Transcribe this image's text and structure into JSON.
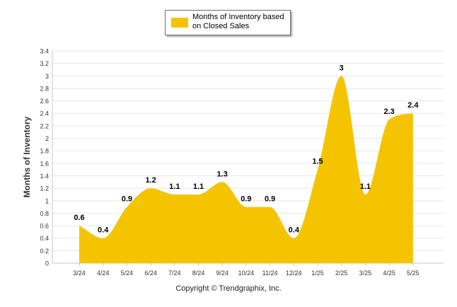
{
  "chart_data": {
    "type": "area",
    "categories": [
      "3/24",
      "4/24",
      "5/24",
      "6/24",
      "7/24",
      "8/24",
      "9/24",
      "10/24",
      "11/24",
      "12/24",
      "1/25",
      "2/25",
      "3/25",
      "4/25",
      "5/25"
    ],
    "series": [
      {
        "name": "Months of Inventory based on Closed Sales",
        "values": [
          0.6,
          0.4,
          0.9,
          1.2,
          1.1,
          1.1,
          1.3,
          0.9,
          0.9,
          0.4,
          1.5,
          3,
          1.1,
          2.3,
          2.4
        ]
      }
    ],
    "data_labels": [
      "0.6",
      "0.4",
      "0.9",
      "1.2",
      "1.1",
      "1.1",
      "1.3",
      "0.9",
      "0.9",
      "0.4",
      "1.5",
      "3",
      "1.1",
      "2.3",
      "2.4"
    ],
    "y_ticks": [
      "0",
      "0.2",
      "0.4",
      "0.6",
      "0.8",
      "1",
      "1.2",
      "1.4",
      "1.6",
      "1.8",
      "2",
      "2.2",
      "2.4",
      "2.6",
      "2.8",
      "3",
      "3.2",
      "3.4"
    ],
    "ylabel": "Months of Inventory",
    "xlabel": "",
    "ylim": [
      0,
      3.4
    ],
    "grid": true,
    "legend_position": "top-center",
    "color": "#F5C400"
  },
  "legend": {
    "label": "Months of Inventory based on Closed Sales"
  },
  "copyright": "Copyright © Trendgraphix, Inc."
}
